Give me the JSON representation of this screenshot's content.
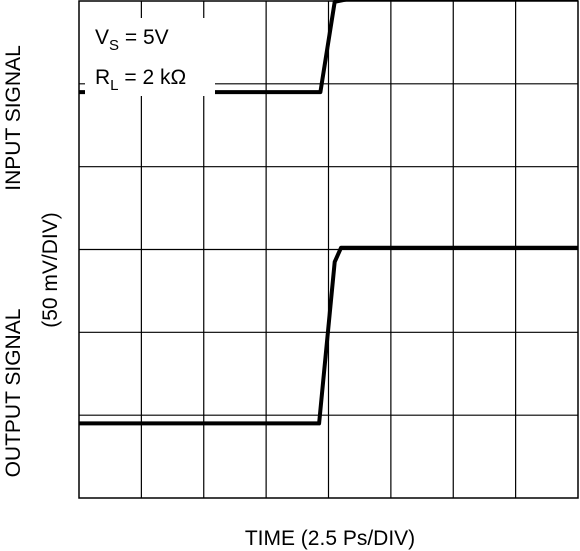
{
  "chart_data": {
    "type": "line",
    "title": "",
    "xlabel": "TIME (2.5 Ps/DIV)",
    "ylabel_top": "INPUT SIGNAL",
    "ylabel_bottom": "OUTPUT SIGNAL",
    "ylabel_scale": "(50 mV/DIV)",
    "divisions": {
      "x": 8,
      "y": 6
    },
    "grid": true,
    "annotations": {
      "vs_main": "V",
      "vs_sub": "S",
      "vs_value": " = 5V",
      "rl_main": "R",
      "rl_sub": "L",
      "rl_value": " = 2 kΩ"
    },
    "series": [
      {
        "role": "input",
        "x": [
          0,
          3.87,
          4.1,
          4.3,
          8.0
        ],
        "y": [
          4.9,
          4.9,
          5.99,
          6.02,
          6.02
        ]
      },
      {
        "role": "output",
        "x": [
          0,
          3.85,
          4.1,
          4.2,
          8.0
        ],
        "y": [
          0.9,
          0.9,
          2.85,
          3.02,
          3.02
        ]
      }
    ]
  }
}
